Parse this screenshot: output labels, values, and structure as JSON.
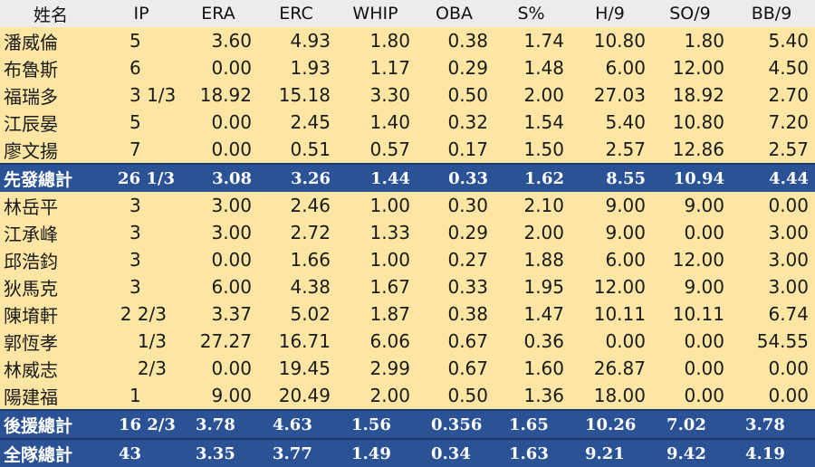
{
  "headers": [
    "姓名",
    "IP",
    "ERA",
    "ERC",
    "WHIP",
    "OBA",
    "S%",
    "H/9",
    "SO/9",
    "BB/9"
  ],
  "starters": [
    [
      "潘威倫",
      "5",
      "3.60",
      "4.93",
      "1.80",
      "0.38",
      "1.74",
      "10.80",
      "1.80",
      "5.40"
    ],
    [
      "布魯斯",
      "6",
      "0.00",
      "1.93",
      "1.17",
      "0.29",
      "1.48",
      "6.00",
      "12.00",
      "4.50"
    ],
    [
      "福瑞多",
      "3 1/3",
      "18.92",
      "15.18",
      "3.30",
      "0.50",
      "2.00",
      "27.03",
      "18.92",
      "2.70"
    ],
    [
      "江辰晏",
      "5",
      "0.00",
      "2.45",
      "1.40",
      "0.32",
      "1.54",
      "5.40",
      "10.80",
      "7.20"
    ],
    [
      "廖文揚",
      "7",
      "0.00",
      "0.51",
      "0.57",
      "0.17",
      "1.50",
      "2.57",
      "12.86",
      "2.57"
    ]
  ],
  "starter_total": [
    "先發總計",
    "26 1/3",
    "3.08",
    "3.26",
    "1.44",
    "0.33",
    "1.62",
    "8.55",
    "10.94",
    "4.44"
  ],
  "relievers": [
    [
      "林岳平",
      "3",
      "3.00",
      "2.46",
      "1.00",
      "0.30",
      "2.10",
      "9.00",
      "9.00",
      "0.00"
    ],
    [
      "江承峰",
      "3",
      "3.00",
      "2.72",
      "1.33",
      "0.29",
      "2.00",
      "9.00",
      "0.00",
      "3.00"
    ],
    [
      "邱浩鈞",
      "3",
      "0.00",
      "1.66",
      "1.00",
      "0.27",
      "1.88",
      "6.00",
      "12.00",
      "3.00"
    ],
    [
      "狄馬克",
      "3",
      "6.00",
      "4.38",
      "1.67",
      "0.33",
      "1.95",
      "12.00",
      "9.00",
      "3.00"
    ],
    [
      "陳堉軒",
      "2 2/3",
      "3.37",
      "5.02",
      "1.87",
      "0.38",
      "1.47",
      "10.11",
      "10.11",
      "6.74"
    ],
    [
      "郭恆孝",
      "1/3",
      "27.27",
      "16.71",
      "6.06",
      "0.67",
      "0.36",
      "0.00",
      "0.00",
      "54.55"
    ],
    [
      "林威志",
      "2/3",
      "0.00",
      "19.45",
      "2.99",
      "0.67",
      "1.60",
      "26.87",
      "0.00",
      "0.00"
    ],
    [
      "陽建福",
      "1",
      "9.00",
      "20.49",
      "2.00",
      "0.50",
      "1.36",
      "18.00",
      "0.00",
      "0.00"
    ]
  ],
  "reliever_total": [
    "後援總計",
    "16 2/3",
    "3.78",
    "4.63",
    "1.56",
    "0.356",
    "1.65",
    "10.26",
    "7.02",
    "3.78"
  ],
  "team_total": [
    "全隊總計",
    "43",
    "3.35",
    "3.77",
    "1.49",
    "0.34",
    "1.63",
    "9.21",
    "9.42",
    "4.19"
  ]
}
